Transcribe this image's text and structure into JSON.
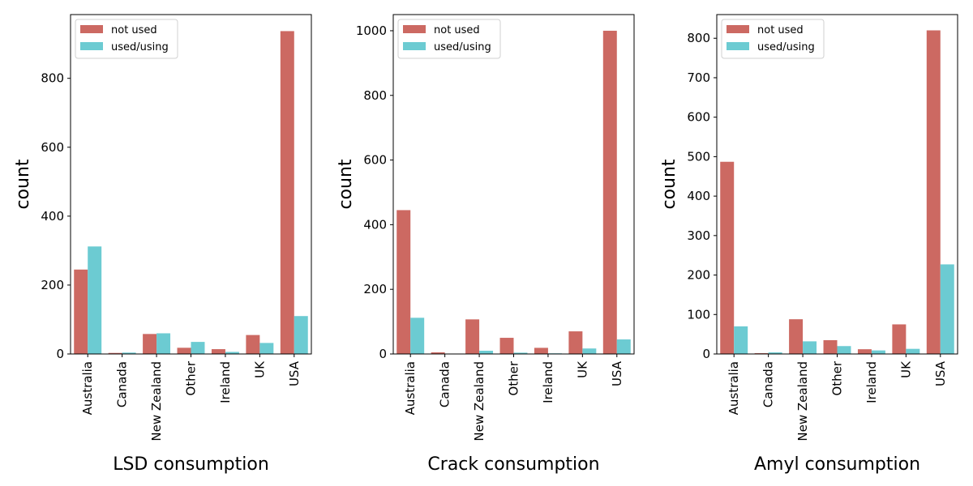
{
  "chart_data": [
    {
      "type": "bar",
      "xlabel": "LSD consumption",
      "ylabel": "count",
      "categories": [
        "Australia",
        "Canada",
        "New Zealand",
        "Other",
        "Ireland",
        "UK",
        "USA"
      ],
      "series": [
        {
          "name": "not used",
          "color": "#cc6962",
          "values": [
            245,
            3,
            58,
            18,
            14,
            55,
            937
          ]
        },
        {
          "name": "used/using",
          "color": "#6ccbd2",
          "values": [
            312,
            4,
            60,
            35,
            6,
            32,
            110
          ]
        }
      ],
      "ylim": [
        0,
        985
      ],
      "yticks": [
        0,
        200,
        400,
        600,
        800
      ],
      "grid": false,
      "legend": "top-left"
    },
    {
      "type": "bar",
      "xlabel": "Crack consumption",
      "ylabel": "count",
      "categories": [
        "Australia",
        "Canada",
        "New Zealand",
        "Other",
        "Ireland",
        "UK",
        "USA"
      ],
      "series": [
        {
          "name": "not used",
          "color": "#cc6962",
          "values": [
            445,
            5,
            107,
            50,
            19,
            70,
            1000
          ]
        },
        {
          "name": "used/using",
          "color": "#6ccbd2",
          "values": [
            112,
            1,
            10,
            4,
            2,
            17,
            45
          ]
        }
      ],
      "ylim": [
        0,
        1050
      ],
      "yticks": [
        0,
        200,
        400,
        600,
        800,
        1000
      ],
      "grid": false,
      "legend": "top-left"
    },
    {
      "type": "bar",
      "xlabel": "Amyl consumption",
      "ylabel": "count",
      "categories": [
        "Australia",
        "Canada",
        "New Zealand",
        "Other",
        "Ireland",
        "UK",
        "USA"
      ],
      "series": [
        {
          "name": "not used",
          "color": "#cc6962",
          "values": [
            487,
            2,
            88,
            35,
            12,
            75,
            820
          ]
        },
        {
          "name": "used/using",
          "color": "#6ccbd2",
          "values": [
            70,
            4,
            32,
            20,
            9,
            13,
            227
          ]
        }
      ],
      "ylim": [
        0,
        860
      ],
      "yticks": [
        0,
        100,
        200,
        300,
        400,
        500,
        600,
        700,
        800
      ],
      "grid": false,
      "legend": "top-left"
    }
  ]
}
